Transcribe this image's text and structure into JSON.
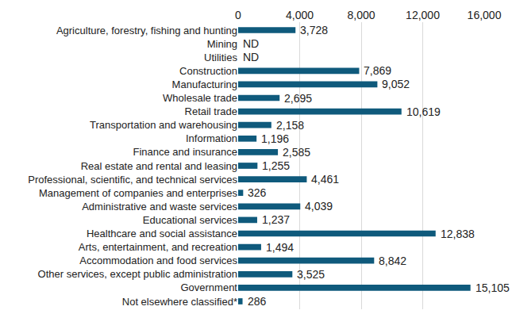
{
  "chart_data": {
    "type": "bar",
    "orientation": "horizontal",
    "categories": [
      "Agriculture, forestry, fishing and hunting",
      "Mining",
      "Utilities",
      "Construction",
      "Manufacturing",
      "Wholesale trade",
      "Retail trade",
      "Transportation and warehousing",
      "Information",
      "Finance and insurance",
      "Real estate and rental and leasing",
      "Professional, scientific, and technical services",
      "Management of companies and enterprises",
      "Administrative and waste services",
      "Educational services",
      "Healthcare and social assistance",
      "Arts, entertainment, and recreation",
      "Accommodation and food services",
      "Other services, except public administration",
      "Government",
      "Not elsewhere classified*"
    ],
    "values": [
      3728,
      null,
      null,
      7869,
      9052,
      2695,
      10619,
      2158,
      1196,
      2585,
      1255,
      4461,
      326,
      4039,
      1237,
      12838,
      1494,
      8842,
      3525,
      15105,
      286
    ],
    "value_labels": [
      "3,728",
      "ND",
      "ND",
      "7,869",
      "9,052",
      "2,695",
      "10,619",
      "2,158",
      "1,196",
      "2,585",
      "1,255",
      "4,461",
      "326",
      "4,039",
      "1,237",
      "12,838",
      "1,494",
      "8,842",
      "3,525",
      "15,105",
      "286"
    ],
    "color": "#0f5a7c",
    "xlim": [
      0,
      16000
    ],
    "xticks": [
      0,
      {
        "value": 4000,
        "label": "4,000"
      },
      {
        "value": 8000,
        "label": "8,000"
      },
      {
        "value": 12000,
        "label": "12,000"
      },
      {
        "value": 16000,
        "label": "16,000"
      }
    ],
    "grid": true,
    "data_labels": true
  }
}
